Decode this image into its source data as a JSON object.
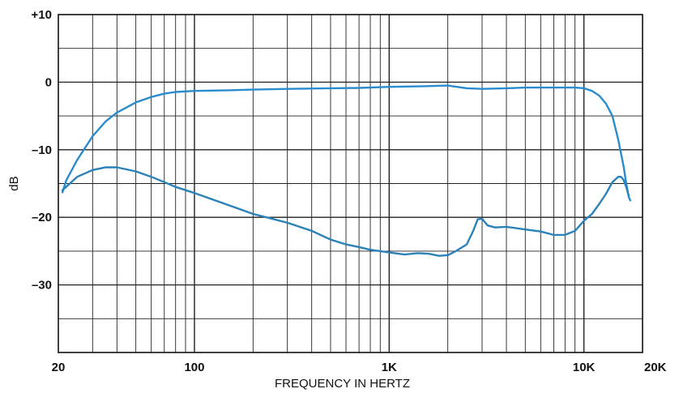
{
  "chart_data": {
    "type": "line",
    "title": "",
    "xlabel": "FREQUENCY IN HERTZ",
    "ylabel": "dB",
    "x_scale": "log",
    "xlim": [
      20,
      20000
    ],
    "ylim": [
      -40,
      10
    ],
    "grid": true,
    "x_tick_labels": [
      {
        "value": 20,
        "label": "20"
      },
      {
        "value": 100,
        "label": "100"
      },
      {
        "value": 1000,
        "label": "1K"
      },
      {
        "value": 10000,
        "label": "10K"
      },
      {
        "value": 20000,
        "label": "20K"
      }
    ],
    "y_tick_labels": [
      {
        "value": 10,
        "label": "+10"
      },
      {
        "value": 0,
        "label": "0"
      },
      {
        "value": -10,
        "label": "–10"
      },
      {
        "value": -20,
        "label": "–20"
      },
      {
        "value": -30,
        "label": "–30"
      }
    ],
    "series": [
      {
        "color": "#2a8ccc",
        "points": [
          [
            21,
            -16.3
          ],
          [
            22,
            -14.5
          ],
          [
            25,
            -11.5
          ],
          [
            30,
            -8
          ],
          [
            35,
            -5.8
          ],
          [
            40,
            -4.5
          ],
          [
            50,
            -3.0
          ],
          [
            60,
            -2.2
          ],
          [
            70,
            -1.7
          ],
          [
            80,
            -1.45
          ],
          [
            100,
            -1.3
          ],
          [
            150,
            -1.2
          ],
          [
            200,
            -1.1
          ],
          [
            300,
            -1.0
          ],
          [
            500,
            -0.9
          ],
          [
            700,
            -0.85
          ],
          [
            1000,
            -0.7
          ],
          [
            1500,
            -0.6
          ],
          [
            2000,
            -0.5
          ],
          [
            2500,
            -0.9
          ],
          [
            3000,
            -1.0
          ],
          [
            4000,
            -0.9
          ],
          [
            5000,
            -0.8
          ],
          [
            7000,
            -0.8
          ],
          [
            9000,
            -0.8
          ],
          [
            10000,
            -0.9
          ],
          [
            11000,
            -1.3
          ],
          [
            12000,
            -2.0
          ],
          [
            13000,
            -3.2
          ],
          [
            14000,
            -5.0
          ],
          [
            15000,
            -8.5
          ],
          [
            16000,
            -12.5
          ],
          [
            16500,
            -15.0
          ],
          [
            17000,
            -17.0
          ],
          [
            17300,
            -17.5
          ]
        ]
      },
      {
        "color": "#2a82b8",
        "points": [
          [
            21,
            -16
          ],
          [
            25,
            -14
          ],
          [
            30,
            -13
          ],
          [
            35,
            -12.6
          ],
          [
            40,
            -12.6
          ],
          [
            50,
            -13.2
          ],
          [
            60,
            -14
          ],
          [
            70,
            -14.8
          ],
          [
            80,
            -15.5
          ],
          [
            100,
            -16.4
          ],
          [
            150,
            -18.2
          ],
          [
            200,
            -19.5
          ],
          [
            250,
            -20.2
          ],
          [
            300,
            -20.8
          ],
          [
            400,
            -22
          ],
          [
            500,
            -23.3
          ],
          [
            600,
            -24
          ],
          [
            700,
            -24.4
          ],
          [
            800,
            -24.8
          ],
          [
            1000,
            -25.2
          ],
          [
            1200,
            -25.5
          ],
          [
            1400,
            -25.3
          ],
          [
            1600,
            -25.4
          ],
          [
            1800,
            -25.7
          ],
          [
            2000,
            -25.6
          ],
          [
            2200,
            -25.0
          ],
          [
            2500,
            -24
          ],
          [
            2700,
            -22
          ],
          [
            2850,
            -20.3
          ],
          [
            3000,
            -20.2
          ],
          [
            3200,
            -21.2
          ],
          [
            3500,
            -21.5
          ],
          [
            4000,
            -21.4
          ],
          [
            5000,
            -21.8
          ],
          [
            6000,
            -22.1
          ],
          [
            7000,
            -22.6
          ],
          [
            8000,
            -22.6
          ],
          [
            9000,
            -22.0
          ],
          [
            10000,
            -20.5
          ],
          [
            11000,
            -19.5
          ],
          [
            12000,
            -18.0
          ],
          [
            13000,
            -16.5
          ],
          [
            14000,
            -14.8
          ],
          [
            15000,
            -14.0
          ],
          [
            15500,
            -14.0
          ],
          [
            16000,
            -14.5
          ],
          [
            16500,
            -15.5
          ],
          [
            17000,
            -16.8
          ]
        ]
      }
    ]
  }
}
